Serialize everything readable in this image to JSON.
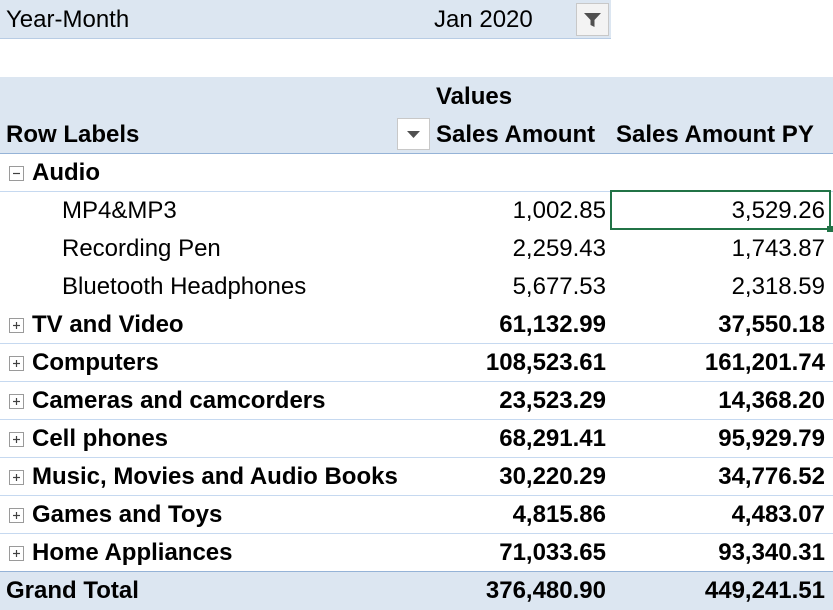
{
  "filter": {
    "label": "Year-Month",
    "value": "Jan 2020",
    "icon": "filter-icon"
  },
  "header": {
    "values": "Values",
    "row_labels": "Row Labels",
    "col1": "Sales Amount",
    "col2": "Sales Amount PY",
    "dropdown_icon": "chevron-down-icon"
  },
  "audio": {
    "label": "Audio",
    "items": [
      {
        "label": "MP4&MP3",
        "sales": "1,002.85",
        "sales_py": "3,529.26"
      },
      {
        "label": "Recording Pen",
        "sales": "2,259.43",
        "sales_py": "1,743.87"
      },
      {
        "label": "Bluetooth Headphones",
        "sales": "5,677.53",
        "sales_py": "2,318.59"
      }
    ]
  },
  "categories": [
    {
      "label": "TV and Video",
      "sales": "61,132.99",
      "sales_py": "37,550.18"
    },
    {
      "label": "Computers",
      "sales": "108,523.61",
      "sales_py": "161,201.74"
    },
    {
      "label": "Cameras and camcorders",
      "sales": "23,523.29",
      "sales_py": "14,368.20"
    },
    {
      "label": "Cell phones",
      "sales": "68,291.41",
      "sales_py": "95,929.79"
    },
    {
      "label": "Music, Movies and Audio Books",
      "sales": "30,220.29",
      "sales_py": "34,776.52"
    },
    {
      "label": "Games and Toys",
      "sales": "4,815.86",
      "sales_py": "4,483.07"
    },
    {
      "label": "Home Appliances",
      "sales": "71,033.65",
      "sales_py": "93,340.31"
    }
  ],
  "grand_total": {
    "label": "Grand Total",
    "sales": "376,480.90",
    "sales_py": "449,241.51"
  },
  "colors": {
    "header_fill": "#dce6f1",
    "active_cell_border": "#217346"
  }
}
